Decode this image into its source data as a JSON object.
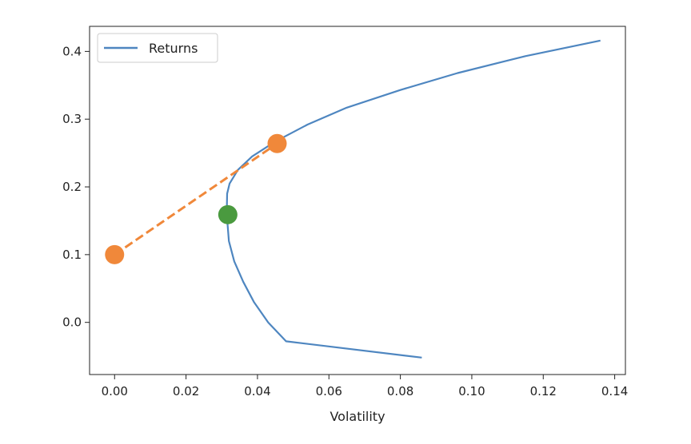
{
  "chart_data": {
    "type": "line",
    "title": "",
    "xlabel": "Volatility",
    "ylabel": "",
    "xlim": [
      -0.007,
      0.143
    ],
    "ylim": [
      -0.077,
      0.437
    ],
    "grid": false,
    "legend_position": "upper-left",
    "xticks": [
      0.0,
      0.02,
      0.04,
      0.06,
      0.08,
      0.1,
      0.12,
      0.14
    ],
    "xtick_labels": [
      "0.00",
      "0.02",
      "0.04",
      "0.06",
      "0.08",
      "0.10",
      "0.12",
      "0.14"
    ],
    "yticks": [
      0.0,
      0.1,
      0.2,
      0.3,
      0.4
    ],
    "ytick_labels": [
      "0.0",
      "0.1",
      "0.2",
      "0.3",
      "0.4"
    ],
    "series": [
      {
        "name": "Returns",
        "style": "solid",
        "color": "#4e86c0",
        "x": [
          0.086,
          0.048,
          0.043,
          0.039,
          0.036,
          0.0335,
          0.032,
          0.0314,
          0.0315,
          0.0322,
          0.0345,
          0.0385,
          0.045,
          0.054,
          0.065,
          0.08,
          0.096,
          0.115,
          0.136
        ],
        "y": [
          -0.052,
          -0.028,
          0.0,
          0.03,
          0.06,
          0.09,
          0.12,
          0.16,
          0.19,
          0.205,
          0.225,
          0.245,
          0.267,
          0.292,
          0.317,
          0.343,
          0.368,
          0.393,
          0.416
        ]
      },
      {
        "name": "",
        "style": "dashed",
        "color": "#f0883a",
        "x": [
          0.0,
          0.0455
        ],
        "y": [
          0.1,
          0.264
        ]
      }
    ],
    "points": [
      {
        "x": 0.0,
        "y": 0.1,
        "color": "#f0883a"
      },
      {
        "x": 0.0455,
        "y": 0.264,
        "color": "#f0883a"
      },
      {
        "x": 0.0317,
        "y": 0.159,
        "color": "#4a9a3f"
      }
    ]
  }
}
